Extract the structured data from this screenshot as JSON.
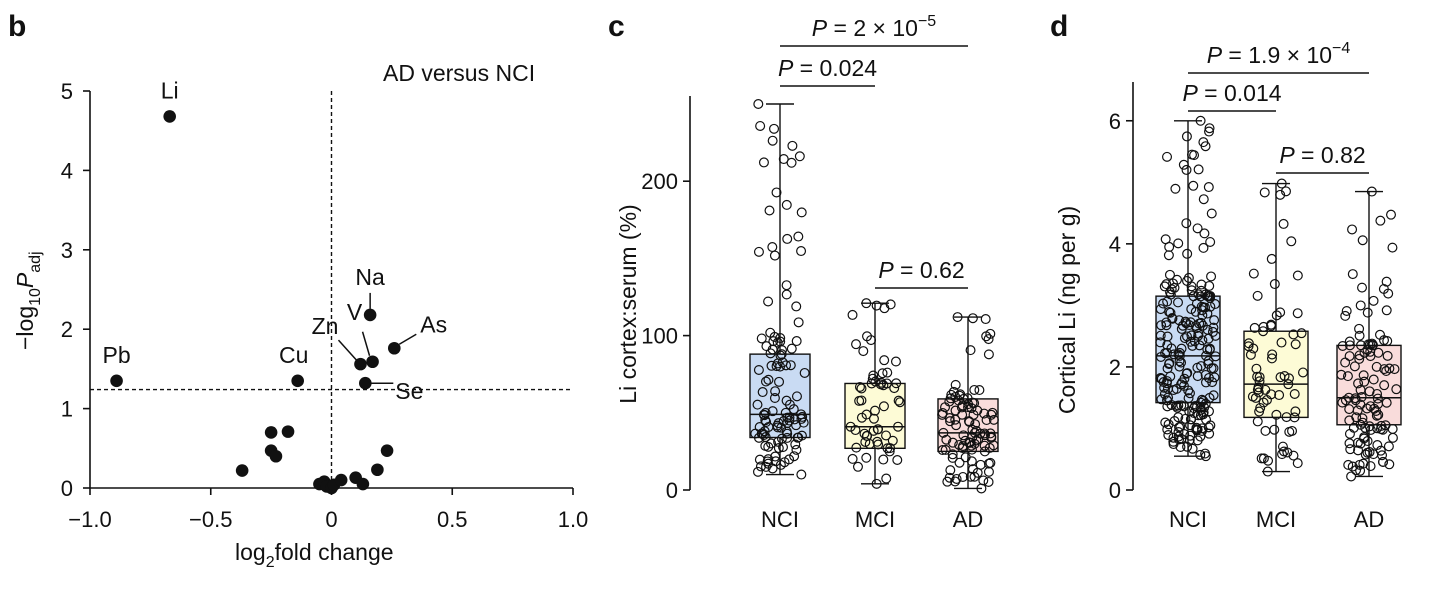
{
  "panels": {
    "b": {
      "letter": "b"
    },
    "c": {
      "letter": "c"
    },
    "d": {
      "letter": "d"
    }
  },
  "colors": {
    "nci_fill": "#c9dbf3",
    "mci_fill": "#fdfbd6",
    "ad_fill": "#f9dcdb",
    "ink": "#111111"
  },
  "chart_data": [
    {
      "panel": "b",
      "type": "scatter",
      "title": "AD versus NCI",
      "xlabel": "log₂fold change",
      "xlabel_main": "log",
      "xlabel_sub": "2",
      "xlabel_rest": "fold change",
      "ylabel_main": "−log",
      "ylabel_sub": "10",
      "ylabel_var": "P",
      "ylabel_varsub": "adj",
      "xlim": [
        -1.0,
        1.0
      ],
      "ylim": [
        0,
        5
      ],
      "xticks": [
        "−1.0",
        "−0.5",
        "0",
        "0.5",
        "1.0"
      ],
      "xtick_values": [
        -1.0,
        -0.5,
        0,
        0.5,
        1.0
      ],
      "yticks": [
        "0",
        "1",
        "2",
        "3",
        "4",
        "5"
      ],
      "ytick_values": [
        0,
        1,
        2,
        3,
        4,
        5
      ],
      "threshold_y": 1.24,
      "points": [
        {
          "x": -0.67,
          "y": 4.68,
          "label": "Li"
        },
        {
          "x": -0.89,
          "y": 1.35,
          "label": "Pb"
        },
        {
          "x": -0.14,
          "y": 1.35,
          "label": "Cu"
        },
        {
          "x": 0.16,
          "y": 2.18,
          "label": "Na"
        },
        {
          "x": 0.26,
          "y": 1.76,
          "label": "As"
        },
        {
          "x": 0.12,
          "y": 1.56,
          "label": "Zn"
        },
        {
          "x": 0.17,
          "y": 1.59,
          "label": "V"
        },
        {
          "x": 0.14,
          "y": 1.32,
          "label": "Se"
        },
        {
          "x": -0.37,
          "y": 0.22
        },
        {
          "x": -0.25,
          "y": 0.7
        },
        {
          "x": -0.25,
          "y": 0.47
        },
        {
          "x": -0.23,
          "y": 0.4
        },
        {
          "x": -0.18,
          "y": 0.71
        },
        {
          "x": -0.05,
          "y": 0.05
        },
        {
          "x": -0.03,
          "y": 0.08
        },
        {
          "x": -0.02,
          "y": 0.02
        },
        {
          "x": 0.0,
          "y": 0.0
        },
        {
          "x": 0.01,
          "y": 0.04
        },
        {
          "x": 0.04,
          "y": 0.1
        },
        {
          "x": 0.1,
          "y": 0.13
        },
        {
          "x": 0.13,
          "y": 0.05
        },
        {
          "x": 0.19,
          "y": 0.23
        },
        {
          "x": 0.23,
          "y": 0.47
        }
      ]
    },
    {
      "panel": "c",
      "type": "box",
      "ylabel": "Li cortex:serum (%)",
      "ylim": [
        0,
        250
      ],
      "yticks": [
        "0",
        "100",
        "200"
      ],
      "ytick_values": [
        0,
        100,
        200
      ],
      "categories": [
        "NCI",
        "MCI",
        "AD"
      ],
      "boxes": [
        {
          "name": "NCI",
          "min": 10,
          "q1": 34,
          "median": 49,
          "q3": 88,
          "max": 250,
          "n": 120
        },
        {
          "name": "MCI",
          "min": 4,
          "q1": 27,
          "median": 41,
          "q3": 69,
          "max": 121,
          "n": 60
        },
        {
          "name": "AD",
          "min": 1,
          "q1": 25,
          "median": 37,
          "q3": 59,
          "max": 112,
          "n": 100
        }
      ],
      "comparisons": [
        {
          "from": 0,
          "to": 2,
          "p_main": "P = 2 × 10",
          "p_exp": "−5"
        },
        {
          "from": 0,
          "to": 1,
          "p_main": "P = 0.024",
          "p_exp": ""
        },
        {
          "from": 1,
          "to": 2,
          "p_main": "P = 0.62",
          "p_exp": ""
        }
      ]
    },
    {
      "panel": "d",
      "type": "box",
      "ylabel": "Cortical Li (ng per g)",
      "ylim": [
        0,
        6.5
      ],
      "yticks": [
        "0",
        "2",
        "4",
        "6"
      ],
      "ytick_values": [
        0,
        2,
        4,
        6
      ],
      "categories": [
        "NCI",
        "MCI",
        "AD"
      ],
      "boxes": [
        {
          "name": "NCI",
          "min": 0.55,
          "q1": 1.42,
          "median": 2.18,
          "q3": 3.15,
          "max": 6.0,
          "n": 230
        },
        {
          "name": "MCI",
          "min": 0.3,
          "q1": 1.18,
          "median": 1.72,
          "q3": 2.58,
          "max": 4.98,
          "n": 70
        },
        {
          "name": "AD",
          "min": 0.22,
          "q1": 1.06,
          "median": 1.5,
          "q3": 2.35,
          "max": 4.85,
          "n": 120
        }
      ],
      "comparisons": [
        {
          "from": 0,
          "to": 2,
          "p_main": "P = 1.9 × 10",
          "p_exp": "−4"
        },
        {
          "from": 0,
          "to": 1,
          "p_main": "P = 0.014",
          "p_exp": ""
        },
        {
          "from": 1,
          "to": 2,
          "p_main": "P = 0.82",
          "p_exp": ""
        }
      ]
    }
  ]
}
